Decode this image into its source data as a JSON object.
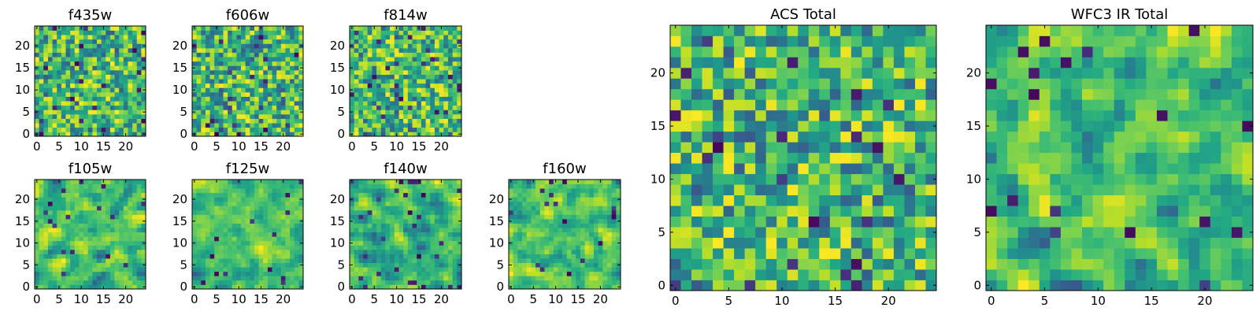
{
  "chart_data": [
    {
      "type": "heatmap",
      "title": "f435w",
      "xticks": [
        0,
        5,
        10,
        15,
        20
      ],
      "yticks": [
        0,
        5,
        10,
        15,
        20
      ],
      "grid_size": 25,
      "xlim": [
        -0.5,
        24.5
      ],
      "ylim": [
        -0.5,
        24.5
      ],
      "colormap": "viridis",
      "texture": "fine noise"
    },
    {
      "type": "heatmap",
      "title": "f606w",
      "xticks": [
        0,
        5,
        10,
        15,
        20
      ],
      "yticks": [
        0,
        5,
        10,
        15,
        20
      ],
      "grid_size": 25,
      "xlim": [
        -0.5,
        24.5
      ],
      "ylim": [
        -0.5,
        24.5
      ],
      "colormap": "viridis",
      "texture": "fine noise"
    },
    {
      "type": "heatmap",
      "title": "f814w",
      "xticks": [
        0,
        5,
        10,
        15,
        20
      ],
      "yticks": [
        0,
        5,
        10,
        15,
        20
      ],
      "grid_size": 25,
      "xlim": [
        -0.5,
        24.5
      ],
      "ylim": [
        -0.5,
        24.5
      ],
      "colormap": "viridis",
      "texture": "fine noise"
    },
    {
      "type": "heatmap",
      "title": "f105w",
      "xticks": [
        0,
        5,
        10,
        15,
        20
      ],
      "yticks": [
        0,
        5,
        10,
        15,
        20
      ],
      "grid_size": 25,
      "xlim": [
        -0.5,
        24.5
      ],
      "ylim": [
        -0.5,
        24.5
      ],
      "colormap": "viridis",
      "texture": "smooth blobs"
    },
    {
      "type": "heatmap",
      "title": "f125w",
      "xticks": [
        0,
        5,
        10,
        15,
        20
      ],
      "yticks": [
        0,
        5,
        10,
        15,
        20
      ],
      "grid_size": 25,
      "xlim": [
        -0.5,
        24.5
      ],
      "ylim": [
        -0.5,
        24.5
      ],
      "colormap": "viridis",
      "texture": "smooth blobs"
    },
    {
      "type": "heatmap",
      "title": "f140w",
      "xticks": [
        0,
        5,
        10,
        15,
        20
      ],
      "yticks": [
        0,
        5,
        10,
        15,
        20
      ],
      "grid_size": 25,
      "xlim": [
        -0.5,
        24.5
      ],
      "ylim": [
        -0.5,
        24.5
      ],
      "colormap": "viridis",
      "texture": "smooth blobs"
    },
    {
      "type": "heatmap",
      "title": "f160w",
      "xticks": [
        0,
        5,
        10,
        15,
        20
      ],
      "yticks": [
        0,
        5,
        10,
        15,
        20
      ],
      "grid_size": 25,
      "xlim": [
        -0.5,
        24.5
      ],
      "ylim": [
        -0.5,
        24.5
      ],
      "colormap": "viridis",
      "texture": "smooth blobs"
    },
    {
      "type": "heatmap",
      "title": "ACS Total",
      "xticks": [
        0,
        5,
        10,
        15,
        20
      ],
      "yticks": [
        0,
        5,
        10,
        15,
        20
      ],
      "grid_size": 25,
      "xlim": [
        -0.5,
        24.5
      ],
      "ylim": [
        -0.5,
        24.5
      ],
      "colormap": "viridis",
      "texture": "noise, large pixels"
    },
    {
      "type": "heatmap",
      "title": "WFC3 IR Total",
      "xticks": [
        0,
        5,
        10,
        15,
        20
      ],
      "yticks": [
        0,
        5,
        10,
        15,
        20
      ],
      "grid_size": 25,
      "xlim": [
        -0.5,
        24.5
      ],
      "ylim": [
        -0.5,
        24.5
      ],
      "colormap": "viridis",
      "texture": "smooth blobs, large pixels"
    }
  ]
}
